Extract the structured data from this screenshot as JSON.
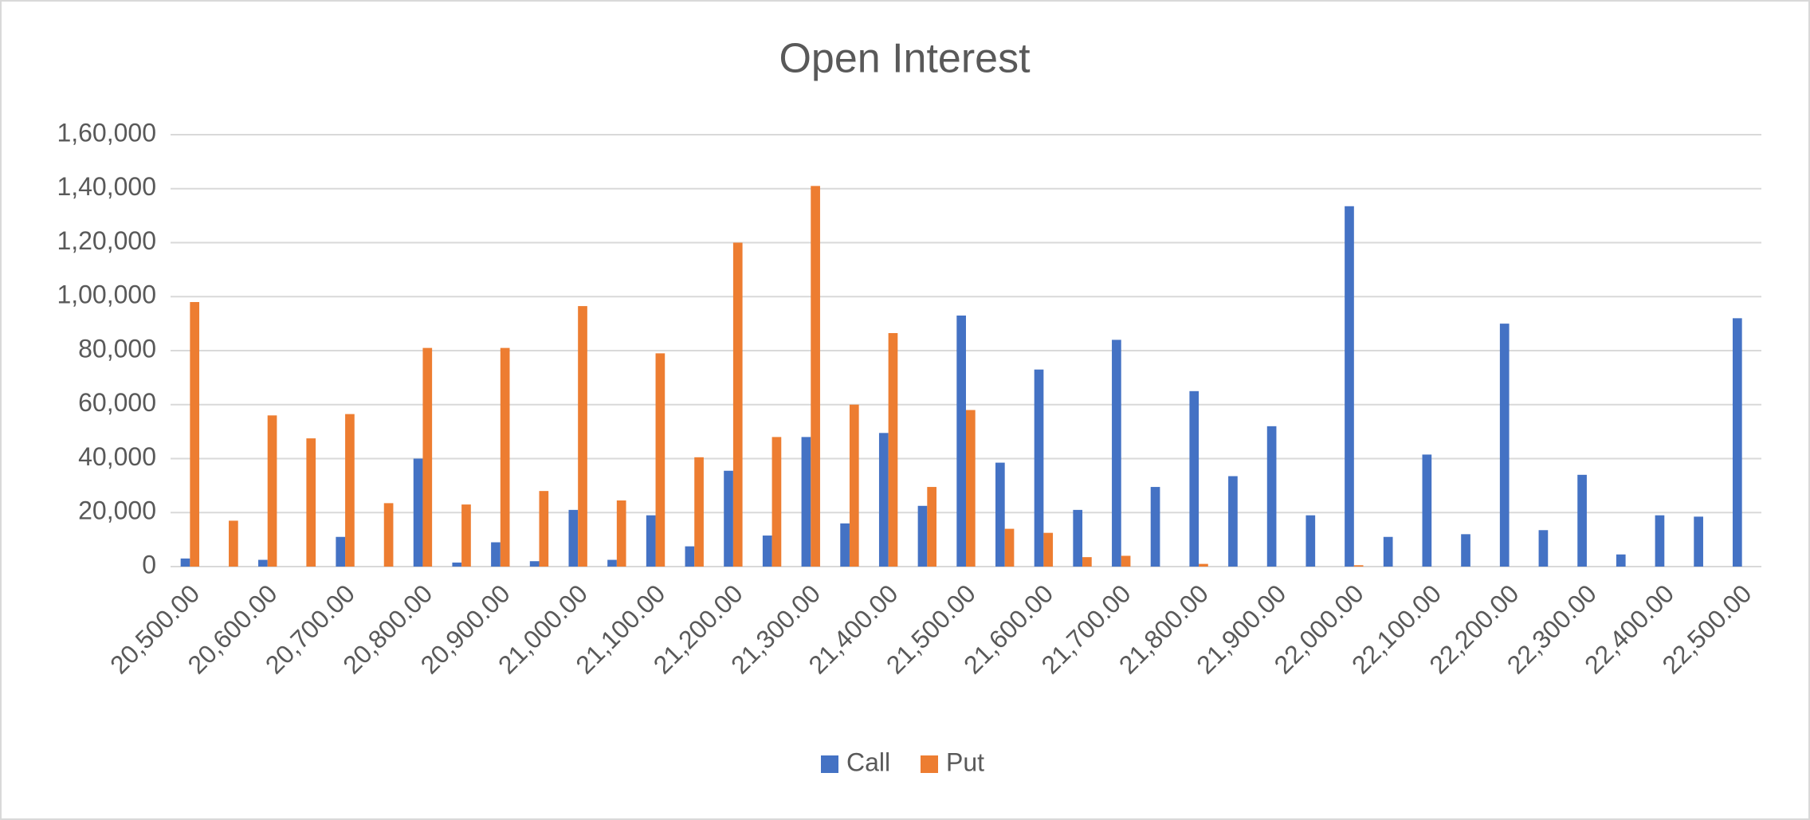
{
  "chart_data": {
    "type": "bar",
    "title": "Open Interest",
    "categories": [
      "20,500.00",
      null,
      "20,600.00",
      null,
      "20,700.00",
      null,
      "20,800.00",
      null,
      "20,900.00",
      null,
      "21,000.00",
      null,
      "21,100.00",
      null,
      "21,200.00",
      null,
      "21,300.00",
      null,
      "21,400.00",
      null,
      "21,500.00",
      null,
      "21,600.00",
      null,
      "21,700.00",
      null,
      "21,800.00",
      null,
      "21,900.00",
      null,
      "22,000.00",
      null,
      "22,100.00",
      null,
      "22,200.00",
      null,
      "22,300.00",
      null,
      "22,400.00",
      null,
      "22,500.00"
    ],
    "series": [
      {
        "name": "Call",
        "color": "#4472c4",
        "values": [
          3000,
          0,
          2500,
          0,
          11000,
          0,
          40000,
          1500,
          9000,
          2000,
          21000,
          2500,
          19000,
          7500,
          35500,
          11500,
          48000,
          16000,
          49500,
          22500,
          93000,
          38500,
          73000,
          21000,
          84000,
          29500,
          65000,
          33500,
          52000,
          19000,
          133500,
          11000,
          41500,
          12000,
          90000,
          13500,
          34000,
          4500,
          19000,
          18500,
          92000
        ]
      },
      {
        "name": "Put",
        "color": "#ed7d31",
        "values": [
          98000,
          17000,
          56000,
          47500,
          56500,
          23500,
          81000,
          23000,
          81000,
          28000,
          96500,
          24500,
          79000,
          40500,
          120000,
          48000,
          141000,
          60000,
          86500,
          29500,
          58000,
          14000,
          12500,
          3500,
          4000,
          0,
          1000,
          0,
          0,
          0,
          500,
          0,
          0,
          0,
          0,
          0,
          0,
          0,
          0,
          0,
          0
        ]
      }
    ],
    "ylim": [
      0,
      160000
    ],
    "yticks": [
      0,
      {
        "value": 20000,
        "label": "20,000"
      },
      {
        "value": 40000,
        "label": "40,000"
      },
      {
        "value": 60000,
        "label": "60,000"
      },
      {
        "value": 80000,
        "label": "80,000"
      },
      {
        "value": 100000,
        "label": "1,00,000"
      },
      {
        "value": 120000,
        "label": "1,20,000"
      },
      {
        "value": 140000,
        "label": "1,40,000"
      },
      {
        "value": 160000,
        "label": "1,60,000"
      }
    ],
    "grid": true,
    "legend": "bottom"
  }
}
